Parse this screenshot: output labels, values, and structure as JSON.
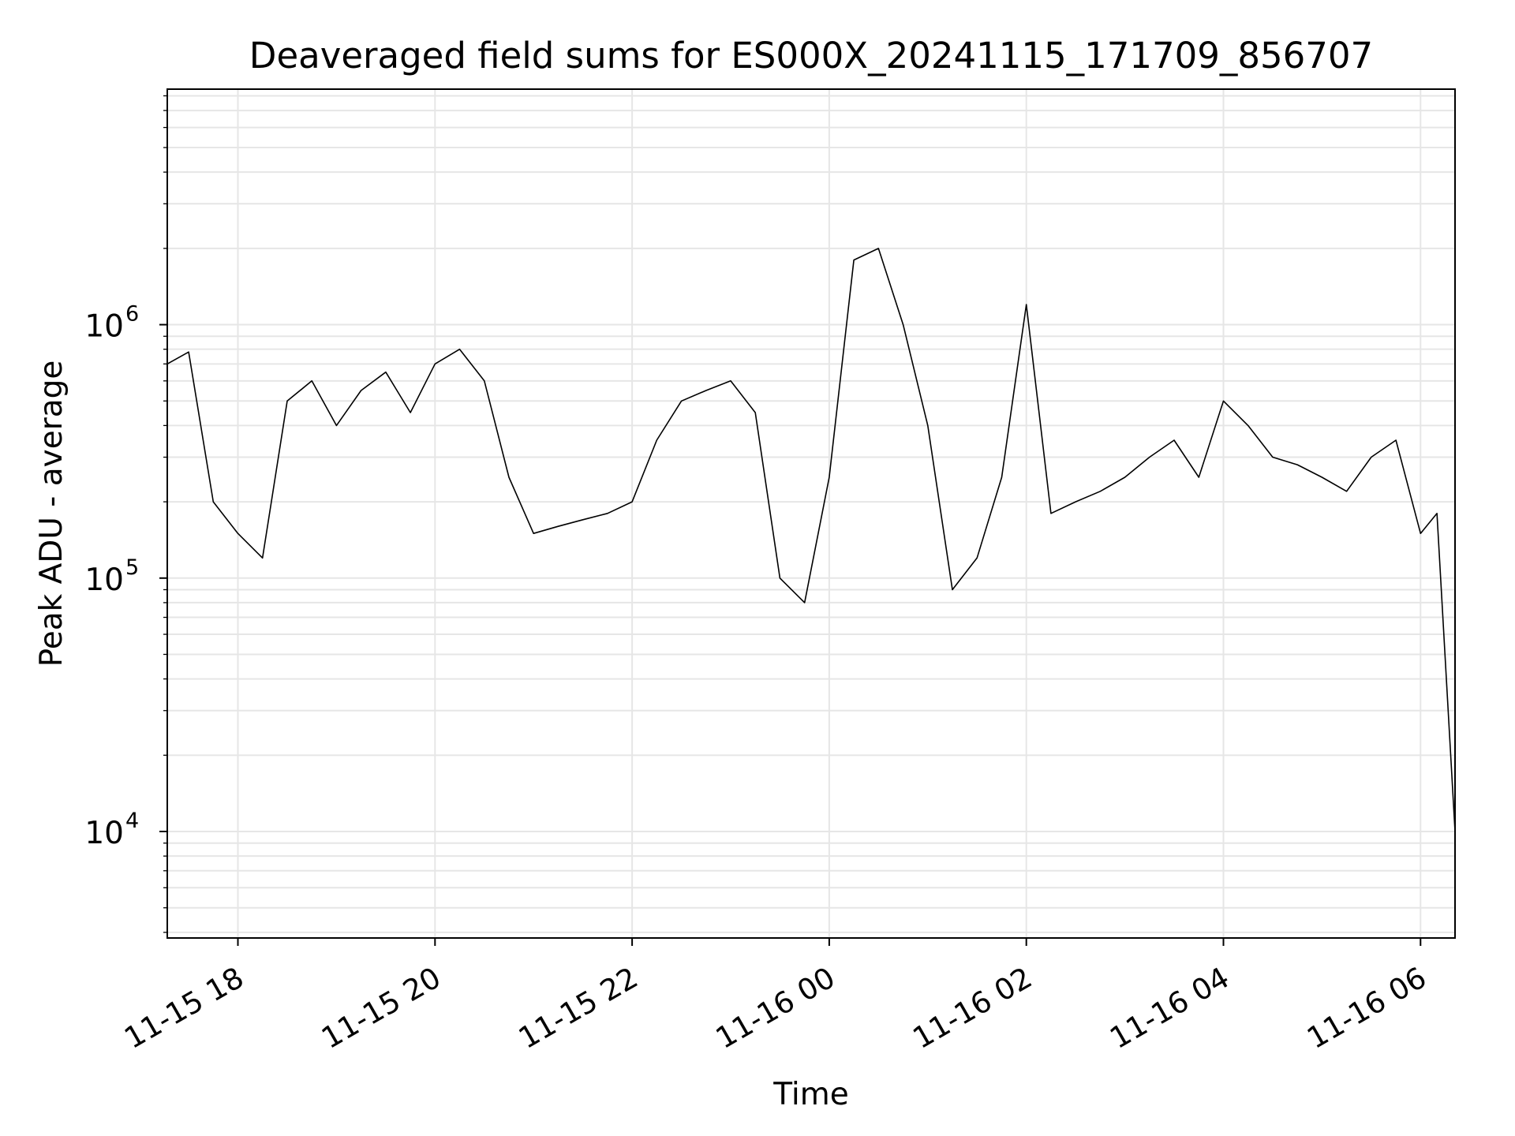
{
  "chart_data": {
    "type": "line",
    "title": "Deaveraged field sums for ES000X_20241115_171709_856707",
    "xlabel": "Time",
    "ylabel": "Peak ADU - average",
    "x_ticks": [
      "11-15 18",
      "11-15 20",
      "11-15 22",
      "11-16 00",
      "11-16 02",
      "11-16 04",
      "11-16 06"
    ],
    "y_ticks": [
      {
        "base": "10",
        "exp": "4"
      },
      {
        "base": "10",
        "exp": "5"
      },
      {
        "base": "10",
        "exp": "6"
      }
    ],
    "y_scale": "log",
    "ylim": [
      3800,
      8500000
    ],
    "xlim": [
      "2024-11-15 17:17",
      "2024-11-16 06:21"
    ],
    "grid": true,
    "line_color": "#000000",
    "series": [
      {
        "x": [
          "2024-11-15 17:17",
          "2024-11-15 17:30",
          "2024-11-15 17:45",
          "2024-11-15 18:00",
          "2024-11-15 18:15",
          "2024-11-15 18:30",
          "2024-11-15 18:45",
          "2024-11-15 19:00",
          "2024-11-15 19:15",
          "2024-11-15 19:30",
          "2024-11-15 19:45",
          "2024-11-15 20:00",
          "2024-11-15 20:15",
          "2024-11-15 20:30",
          "2024-11-15 20:45",
          "2024-11-15 21:00",
          "2024-11-15 21:15",
          "2024-11-15 21:30",
          "2024-11-15 21:45",
          "2024-11-15 22:00",
          "2024-11-15 22:15",
          "2024-11-15 22:30",
          "2024-11-15 22:45",
          "2024-11-15 23:00",
          "2024-11-15 23:15",
          "2024-11-15 23:30",
          "2024-11-15 23:45",
          "2024-11-16 00:00",
          "2024-11-16 00:15",
          "2024-11-16 00:30",
          "2024-11-16 00:45",
          "2024-11-16 01:00",
          "2024-11-16 01:15",
          "2024-11-16 01:30",
          "2024-11-16 01:45",
          "2024-11-16 02:00",
          "2024-11-16 02:15",
          "2024-11-16 02:30",
          "2024-11-16 02:45",
          "2024-11-16 03:00",
          "2024-11-16 03:15",
          "2024-11-16 03:30",
          "2024-11-16 03:45",
          "2024-11-16 04:00",
          "2024-11-16 04:15",
          "2024-11-16 04:30",
          "2024-11-16 04:45",
          "2024-11-16 05:00",
          "2024-11-16 05:15",
          "2024-11-16 05:30",
          "2024-11-16 05:45",
          "2024-11-16 06:00",
          "2024-11-16 06:10",
          "2024-11-16 06:21"
        ],
        "values": [
          700000,
          780000,
          200000,
          150000,
          120000,
          500000,
          600000,
          400000,
          550000,
          650000,
          450000,
          700000,
          800000,
          600000,
          250000,
          150000,
          160000,
          170000,
          180000,
          200000,
          350000,
          500000,
          550000,
          600000,
          450000,
          100000,
          80000,
          250000,
          1800000,
          2000000,
          1000000,
          400000,
          90000,
          120000,
          250000,
          1200000,
          180000,
          200000,
          220000,
          250000,
          300000,
          350000,
          250000,
          500000,
          400000,
          300000,
          280000,
          250000,
          220000,
          300000,
          350000,
          150000,
          180000,
          10000
        ],
        "mark_style": "thin black line"
      }
    ]
  }
}
